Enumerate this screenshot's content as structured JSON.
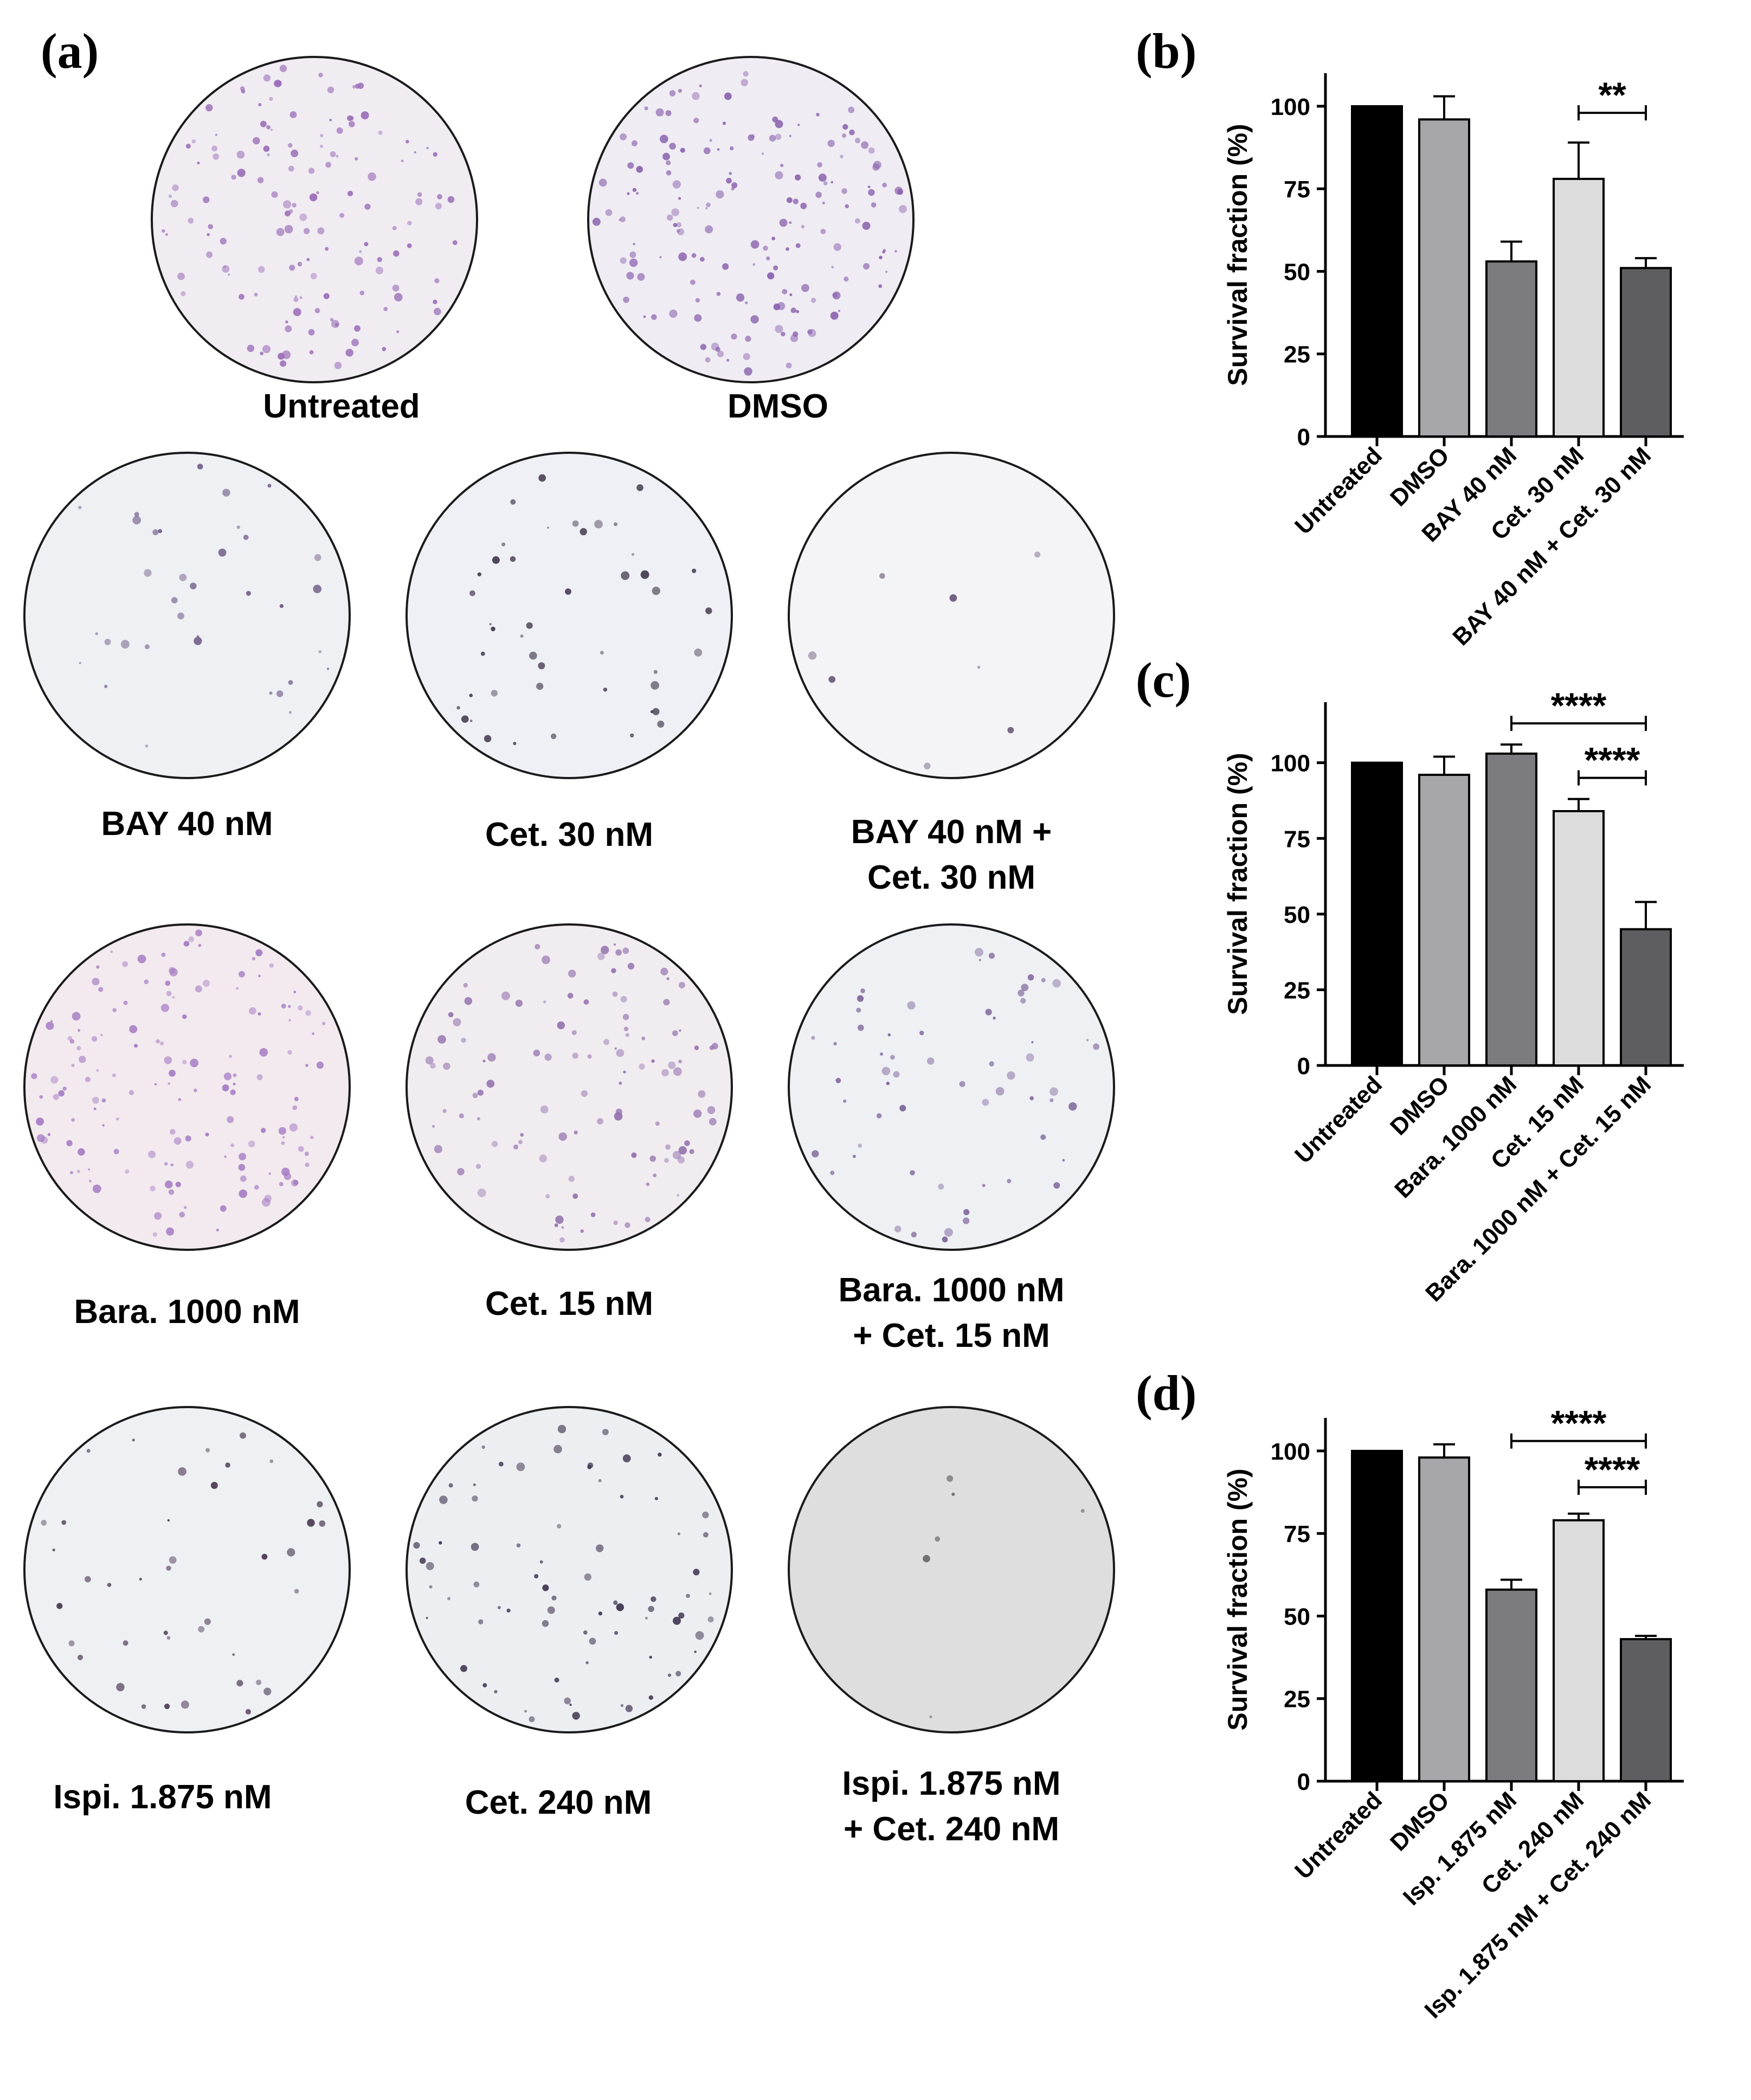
{
  "panel_a": {
    "letter": "(a)",
    "dishes": [
      {
        "label_lines": [
          "Untreated"
        ],
        "density": 140,
        "tint": "#f0ecf2",
        "dot": "#9b6fb8"
      },
      {
        "label_lines": [
          "DMSO"
        ],
        "density": 170,
        "tint": "#efecf3",
        "dot": "#8a63ae"
      },
      {
        "label_lines": [
          "BAY 40 nM"
        ],
        "density": 35,
        "tint": "#eef0f4",
        "dot": "#6e5a86"
      },
      {
        "label_lines": [
          "Cet. 30 nM"
        ],
        "density": 45,
        "tint": "#eef0f5",
        "dot": "#3d3348"
      },
      {
        "label_lines": [
          "BAY 40 nM +",
          "Cet. 30 nM"
        ],
        "density": 8,
        "tint": "#f4f3f6",
        "dot": "#6a5a7a"
      },
      {
        "label_lines": [
          "Bara. 1000 nM"
        ],
        "density": 150,
        "tint": "#f2eaee",
        "dot": "#a57cc4"
      },
      {
        "label_lines": [
          "Cet. 15 nM"
        ],
        "density": 110,
        "tint": "#f1ecf0",
        "dot": "#9475ae"
      },
      {
        "label_lines": [
          "Bara. 1000 nM",
          "+ Cet. 15 nM"
        ],
        "density": 60,
        "tint": "#eef0f4",
        "dot": "#7d6499"
      },
      {
        "label_lines": [
          "Ispi.  1.875 nM"
        ],
        "density": 40,
        "tint": "#eef0f4",
        "dot": "#4a3850"
      },
      {
        "label_lines": [
          "Cet.  240 nM"
        ],
        "density": 75,
        "tint": "#edeef2",
        "dot": "#3f3550"
      },
      {
        "label_lines": [
          "Ispi. 1.875 nM",
          "+ Cet. 240 nM"
        ],
        "density": 6,
        "tint": "#dedede",
        "dot": "#555555"
      }
    ]
  },
  "chart_data": [
    {
      "panel_letter": "(b)",
      "type": "bar",
      "ylabel": "Survival fraction (%)",
      "ylim": [
        0,
        110
      ],
      "yticks": [
        0,
        25,
        50,
        75,
        100
      ],
      "categories": [
        "Untreated",
        "DMSO",
        "BAY 40 nM",
        "Cet. 30 nM",
        "BAY 40 nM + Cet. 30 nM"
      ],
      "values": [
        100,
        96,
        53,
        78,
        51
      ],
      "errors": [
        0,
        7,
        6,
        11,
        3
      ],
      "bar_colors": [
        "#000000",
        "#a7a7a9",
        "#7c7c7e",
        "#dcdcdc",
        "#5e5e60"
      ],
      "significance": [
        {
          "from": 3,
          "to": 4,
          "label": "**",
          "y": 98
        }
      ]
    },
    {
      "panel_letter": "(c)",
      "type": "bar",
      "ylabel": "Survival fraction (%)",
      "ylim": [
        0,
        120
      ],
      "yticks": [
        0,
        25,
        50,
        75,
        100
      ],
      "categories": [
        "Untreated",
        "DMSO",
        "Bara. 1000 nM",
        "Cet. 15 nM",
        "Bara. 1000 nM + Cet. 15 nM"
      ],
      "values": [
        100,
        96,
        103,
        84,
        45
      ],
      "errors": [
        0,
        6,
        3,
        4,
        9
      ],
      "bar_colors": [
        "#000000",
        "#a7a7a9",
        "#7c7c7e",
        "#dcdcdc",
        "#5e5e60"
      ],
      "significance": [
        {
          "from": 2,
          "to": 4,
          "label": "****",
          "y": 113
        },
        {
          "from": 3,
          "to": 4,
          "label": "****",
          "y": 95
        }
      ]
    },
    {
      "panel_letter": "(d)",
      "type": "bar",
      "ylabel": "Survival fraction (%)",
      "ylim": [
        0,
        110
      ],
      "yticks": [
        0,
        25,
        50,
        75,
        100
      ],
      "categories": [
        "Untreated",
        "DMSO",
        "Isp. 1.875 nM",
        "Cet. 240 nM",
        "Isp. 1.875 nM + Cet. 240 nM"
      ],
      "values": [
        100,
        98,
        58,
        79,
        43
      ],
      "errors": [
        0,
        4,
        3,
        2,
        1
      ],
      "bar_colors": [
        "#000000",
        "#a7a7a9",
        "#7c7c7e",
        "#dcdcdc",
        "#5e5e60"
      ],
      "significance": [
        {
          "from": 2,
          "to": 4,
          "label": "****",
          "y": 103
        },
        {
          "from": 3,
          "to": 4,
          "label": "****",
          "y": 89
        }
      ]
    }
  ]
}
